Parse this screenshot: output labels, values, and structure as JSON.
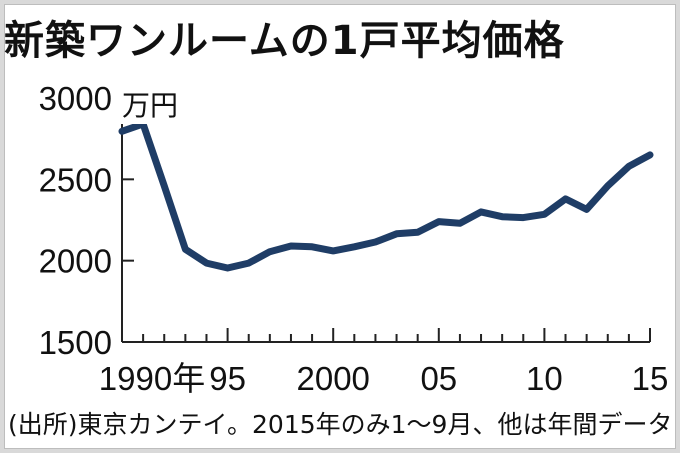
{
  "title": "新築ワンルームの1戸平均価格",
  "unit_label": "万円",
  "source": "(出所)東京カンテイ。2015年のみ1～9月、他は年間データ",
  "colors": {
    "line": "#1f3d66",
    "axis": "#222222",
    "text": "#111111"
  },
  "chart_data": {
    "type": "line",
    "x": [
      1990,
      1991,
      1992,
      1993,
      1994,
      1995,
      1996,
      1997,
      1998,
      1999,
      2000,
      2001,
      2002,
      2003,
      2004,
      2005,
      2006,
      2007,
      2008,
      2009,
      2010,
      2011,
      2012,
      2013,
      2014,
      2015
    ],
    "series": [
      {
        "values": [
          2795,
          2840,
          2460,
          2070,
          1985,
          1955,
          1985,
          2055,
          2090,
          2085,
          2060,
          2085,
          2115,
          2165,
          2175,
          2240,
          2230,
          2300,
          2270,
          2265,
          2285,
          2380,
          2315,
          2460,
          2580,
          2650
        ]
      }
    ],
    "ylim": [
      1500,
      3000
    ],
    "yticks": [
      1500,
      2000,
      2500,
      3000
    ],
    "xticks": [
      1990,
      1995,
      2000,
      2005,
      2010,
      2015
    ],
    "xtick_labels": [
      "1990年",
      "95",
      "2000",
      "05",
      "10",
      "15"
    ],
    "grid": false
  }
}
